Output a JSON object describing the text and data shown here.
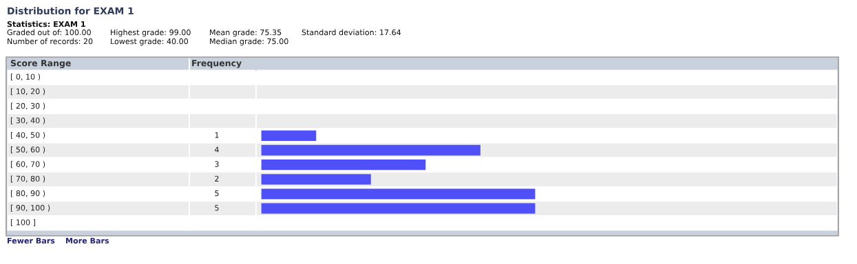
{
  "chart_data": {
    "type": "bar",
    "orientation": "horizontal",
    "title": "Distribution for EXAM 1",
    "ylabel": "Score Range",
    "xlabel": "Frequency",
    "categories": [
      "[ 0, 10 )",
      "[ 10, 20 )",
      "[ 20, 30 )",
      "[ 30, 40 )",
      "[ 40, 50 )",
      "[ 50, 60 )",
      "[ 60, 70 )",
      "[ 70, 80 )",
      "[ 80, 90 )",
      "[ 90, 100 )",
      "[ 100 ]"
    ],
    "values": [
      0,
      0,
      0,
      0,
      1,
      4,
      3,
      2,
      5,
      5,
      0
    ],
    "value_labels": [
      null,
      null,
      null,
      null,
      "1",
      "4",
      "3",
      "2",
      "5",
      "5",
      null
    ],
    "color": "#5050f8",
    "annotations": [
      "Statistics: EXAM 1",
      "Graded out of: 100.00",
      "Highest grade: 99.00",
      "Mean grade: 75.35",
      "Standard deviation: 17.64",
      "Number of records: 20",
      "Lowest grade: 40.00",
      "Median grade: 75.00",
      "Fewer Bars",
      "More Bars"
    ]
  }
}
